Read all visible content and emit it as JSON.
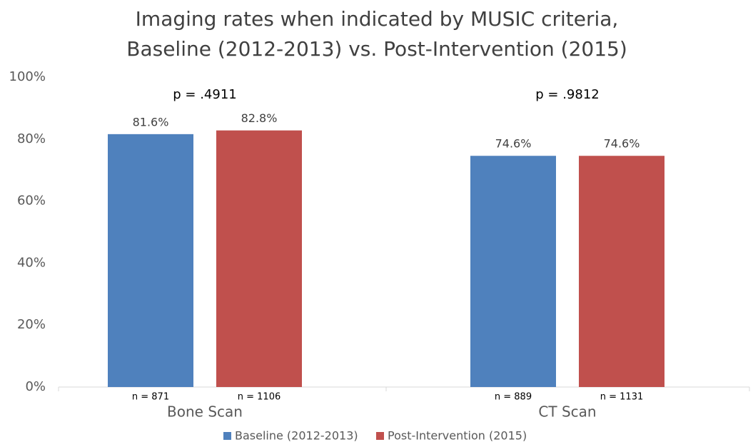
{
  "chart_data": {
    "type": "bar",
    "title": [
      "Imaging rates when indicated by MUSIC criteria,",
      "Baseline (2012-2013) vs. Post-Intervention (2015)"
    ],
    "categories": [
      "Bone Scan",
      "CT Scan"
    ],
    "annotations": [
      "p = .4911",
      "p = .9812"
    ],
    "series": [
      {
        "name": "Baseline (2012-2013)",
        "color": "#4f81bd",
        "values": [
          81.6,
          74.6
        ],
        "value_labels": [
          "81.6%",
          "74.6%"
        ],
        "n_labels": [
          "n = 871",
          "n = 889"
        ]
      },
      {
        "name": "Post-Intervention (2015)",
        "color": "#c0504d",
        "values": [
          82.8,
          74.6
        ],
        "value_labels": [
          "82.8%",
          "74.6%"
        ],
        "n_labels": [
          "n = 1106",
          "n = 1131"
        ]
      }
    ],
    "ylim": [
      0,
      100
    ],
    "yticks": [
      {
        "value": 0,
        "label": "0%"
      },
      {
        "value": 20,
        "label": "20%"
      },
      {
        "value": 40,
        "label": "40%"
      },
      {
        "value": 60,
        "label": "60%"
      },
      {
        "value": 80,
        "label": "80%"
      },
      {
        "value": 100,
        "label": "100%"
      }
    ],
    "grid": false,
    "legend": "bottom"
  }
}
